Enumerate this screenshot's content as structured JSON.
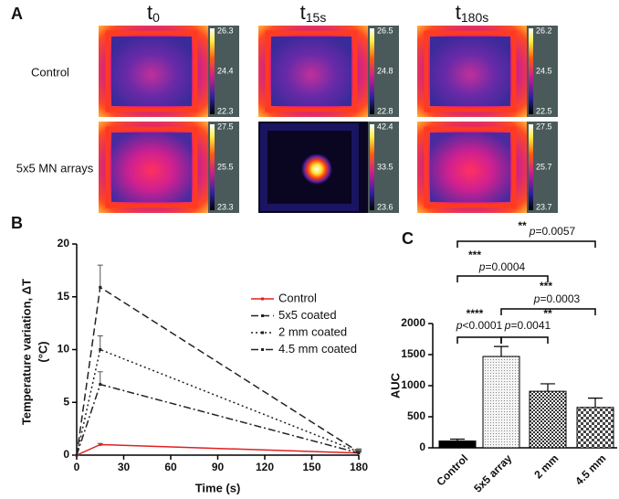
{
  "panels": {
    "a": "A",
    "b": "B",
    "c": "C"
  },
  "thermal": {
    "columns": [
      {
        "base": "t",
        "sub": "0"
      },
      {
        "base": "t",
        "sub": "15s"
      },
      {
        "base": "t",
        "sub": "180s"
      }
    ],
    "rows": [
      "Control",
      "5x5 MN arrays"
    ],
    "scales": [
      [
        [
          26.3,
          24.4,
          22.3
        ],
        [
          26.5,
          24.8,
          22.8
        ],
        [
          26.2,
          24.5,
          22.5
        ]
      ],
      [
        [
          27.5,
          25.5,
          23.3
        ],
        [
          42.4,
          33.5,
          23.6
        ],
        [
          27.5,
          25.7,
          23.7
        ]
      ]
    ]
  },
  "chart_data": [
    {
      "type": "line",
      "x_label": "Time (s)",
      "y_label": [
        "Temperature variation, ΔT",
        "(°C)"
      ],
      "x": [
        0,
        15,
        180
      ],
      "series": [
        {
          "name": "Control",
          "color": "#e02020",
          "dash": "solid",
          "values": [
            0,
            1.0,
            0.2
          ],
          "errors": [
            0,
            0.1,
            0.1
          ]
        },
        {
          "name": "5x5 coated",
          "color": "#222222",
          "dash": "dash",
          "values": [
            0,
            15.9,
            0.3
          ],
          "errors": [
            0,
            2.1,
            0.3
          ]
        },
        {
          "name": "2 mm coated",
          "color": "#222222",
          "dash": "dot",
          "values": [
            0,
            10.0,
            0.3
          ],
          "errors": [
            0,
            1.3,
            0.2
          ]
        },
        {
          "name": "4.5 mm coated",
          "color": "#222222",
          "dash": "dashdot",
          "values": [
            0,
            6.7,
            0.2
          ],
          "errors": [
            0,
            1.2,
            0.2
          ]
        }
      ],
      "xlim": [
        0,
        180
      ],
      "xticks": [
        0,
        30,
        60,
        90,
        120,
        150,
        180
      ],
      "ylim": [
        0,
        20
      ],
      "yticks": [
        0,
        5,
        10,
        15,
        20
      ],
      "legend": "upper-right"
    },
    {
      "type": "bar",
      "y_label": "AUC",
      "categories": [
        "Control",
        "5x5 array",
        "2 mm",
        "4.5 mm"
      ],
      "values": [
        110,
        1470,
        910,
        650
      ],
      "errors": [
        30,
        160,
        120,
        150
      ],
      "fills": [
        "black",
        "dotted",
        "checkered",
        "checkered-fine"
      ],
      "ylim": [
        0,
        2000
      ],
      "yticks": [
        0,
        500,
        1000,
        1500,
        2000
      ],
      "significance": [
        {
          "stars": "**",
          "p": "p",
          "text": "=0.0057"
        },
        {
          "stars": "***",
          "p": "p",
          "text": "=0.0004"
        },
        {
          "stars": "***",
          "p": "p",
          "text": "=0.0003"
        },
        {
          "stars": "****",
          "p": "p",
          "text": "<0.0001"
        },
        {
          "stars": "**",
          "p": "p",
          "text": "=0.0041"
        }
      ]
    }
  ]
}
